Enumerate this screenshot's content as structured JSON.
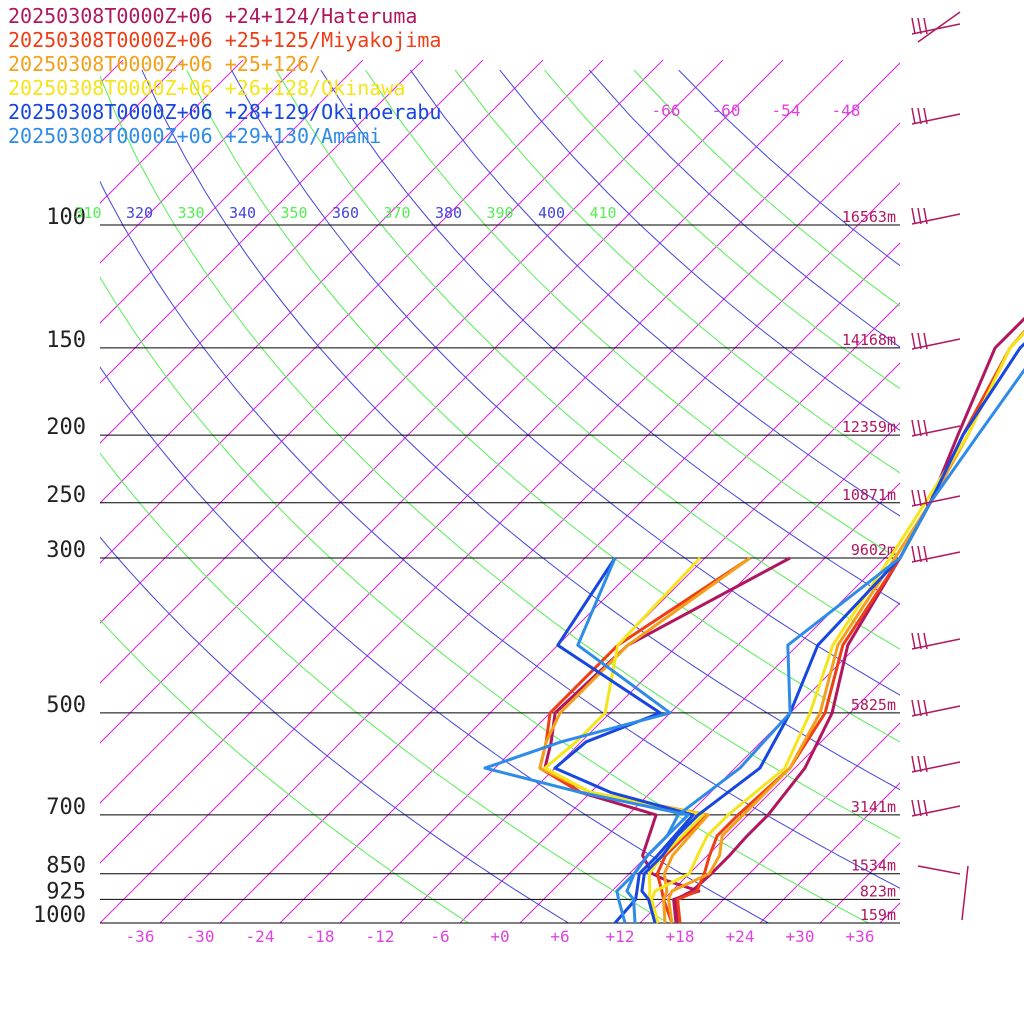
{
  "legend": [
    {
      "label": "20250308T0000Z+06 +24+124/Hateruma",
      "color": "#b0175f"
    },
    {
      "label": "20250308T0000Z+06 +25+125/Miyakojima",
      "color": "#ef3e16"
    },
    {
      "label": "20250308T0000Z+06 +25+126/",
      "color": "#f5a01a"
    },
    {
      "label": "20250308T0000Z+06 +26+128/Okinawa",
      "color": "#f5e51a"
    },
    {
      "label": "20250308T0000Z+06 +28+129/Okinoerabu",
      "color": "#1746e0"
    },
    {
      "label": "20250308T0000Z+06 +29+130/Amami",
      "color": "#2e8ce8"
    }
  ],
  "chart_data": {
    "type": "line",
    "x_ticks": [
      "-36",
      "-30",
      "-24",
      "-18",
      "-12",
      "-6",
      "+0",
      "+6",
      "+12",
      "+18",
      "+24",
      "+30",
      "+36"
    ],
    "x_tick_values": [
      -36,
      -30,
      -24,
      -18,
      -12,
      -6,
      0,
      6,
      12,
      18,
      24,
      30,
      36
    ],
    "xlim": [
      -40,
      40
    ],
    "pressure_range": [
      1000,
      100
    ],
    "pressure_levels": [
      {
        "p": 100,
        "label": "100",
        "height": "16563m"
      },
      {
        "p": 150,
        "label": "150",
        "height": "14168m"
      },
      {
        "p": 200,
        "label": "200",
        "height": "12359m"
      },
      {
        "p": 250,
        "label": "250",
        "height": "10871m"
      },
      {
        "p": 300,
        "label": "300",
        "height": "9602m"
      },
      {
        "p": 500,
        "label": "500",
        "height": "5825m"
      },
      {
        "p": 700,
        "label": "700",
        "height": "3141m"
      },
      {
        "p": 850,
        "label": "850",
        "height": "1534m"
      },
      {
        "p": 925,
        "label": "925",
        "height": "823m"
      },
      {
        "p": 1000,
        "label": "1000",
        "height": "159m"
      }
    ],
    "upper_temp_labels": [
      "-66",
      "-60",
      "-54",
      "-48"
    ],
    "upper_temp_values": [
      -66,
      -60,
      -54,
      -48
    ],
    "theta_labels": [
      {
        "label": "310",
        "color": "#55ee55"
      },
      {
        "label": "320",
        "color": "#4444dd"
      },
      {
        "label": "330",
        "color": "#55ee55"
      },
      {
        "label": "340",
        "color": "#4444dd"
      },
      {
        "label": "350",
        "color": "#55ee55"
      },
      {
        "label": "360",
        "color": "#4444dd"
      },
      {
        "label": "370",
        "color": "#55ee55"
      },
      {
        "label": "380",
        "color": "#4444dd"
      },
      {
        "label": "390",
        "color": "#55ee55"
      },
      {
        "label": "400",
        "color": "#4444dd"
      },
      {
        "label": "410",
        "color": "#55ee55"
      }
    ],
    "series": [
      {
        "name": "Hateruma",
        "color": "#b0175f",
        "temperature": [
          [
            1000,
            17.8
          ],
          [
            925,
            15.2
          ],
          [
            900,
            16
          ],
          [
            850,
            16.2
          ],
          [
            800,
            16.2
          ],
          [
            750,
            16
          ],
          [
            700,
            16
          ],
          [
            600,
            15
          ],
          [
            500,
            12.2
          ],
          [
            400,
            7
          ],
          [
            300,
            3.5
          ],
          [
            250,
            1
          ],
          [
            200,
            -3
          ],
          [
            150,
            -8
          ],
          [
            100,
            -8
          ]
        ],
        "dewpoint": [
          [
            1000,
            17.6
          ],
          [
            925,
            15
          ],
          [
            900,
            16.7
          ],
          [
            870,
            12.5
          ],
          [
            850,
            10.3
          ],
          [
            800,
            7.5
          ],
          [
            700,
            4.8
          ],
          [
            650,
            -5
          ],
          [
            600,
            -11
          ],
          [
            550,
            -13
          ],
          [
            500,
            -15.5
          ],
          [
            400,
            -15
          ],
          [
            300,
            -7.5
          ]
        ]
      },
      {
        "name": "Miyakojima",
        "color": "#ef3e16",
        "temperature": [
          [
            1000,
            18
          ],
          [
            925,
            15.4
          ],
          [
            900,
            16.5
          ],
          [
            850,
            15.5
          ],
          [
            800,
            14.2
          ],
          [
            750,
            13
          ],
          [
            700,
            13
          ],
          [
            600,
            13.5
          ],
          [
            500,
            11.5
          ],
          [
            400,
            6.5
          ],
          [
            300,
            3.5
          ],
          [
            250,
            1
          ],
          [
            200,
            -2.5
          ],
          [
            150,
            -6.5
          ],
          [
            100,
            -8
          ]
        ],
        "dewpoint": [
          [
            1000,
            17.2
          ],
          [
            925,
            14
          ],
          [
            900,
            13
          ],
          [
            850,
            10.8
          ],
          [
            800,
            9.8
          ],
          [
            700,
            9.8
          ],
          [
            650,
            -5
          ],
          [
            600,
            -11.5
          ],
          [
            550,
            -13.5
          ],
          [
            500,
            -16
          ],
          [
            400,
            -16
          ],
          [
            300,
            -11.5
          ]
        ]
      },
      {
        "name": "",
        "color": "#f5a01a",
        "temperature": [
          [
            1000,
            17.2
          ],
          [
            925,
            14.5
          ],
          [
            900,
            14
          ],
          [
            850,
            16
          ],
          [
            800,
            15.2
          ],
          [
            750,
            13.5
          ],
          [
            700,
            13.5
          ],
          [
            600,
            13.5
          ],
          [
            500,
            11
          ],
          [
            400,
            6
          ],
          [
            300,
            3
          ],
          [
            250,
            1
          ],
          [
            200,
            -2
          ],
          [
            150,
            -6.5
          ],
          [
            100,
            -7.5
          ]
        ],
        "dewpoint": [
          [
            1000,
            16.5
          ],
          [
            925,
            14
          ],
          [
            900,
            13.5
          ],
          [
            850,
            11.5
          ],
          [
            800,
            10.5
          ],
          [
            700,
            10
          ],
          [
            650,
            -4
          ],
          [
            600,
            -11.5
          ],
          [
            550,
            -13.5
          ],
          [
            500,
            -15
          ],
          [
            400,
            -15
          ],
          [
            300,
            -11.5
          ]
        ]
      },
      {
        "name": "Okinawa",
        "color": "#f5e51a",
        "temperature": [
          [
            1000,
            15.8
          ],
          [
            925,
            12.8
          ],
          [
            900,
            12.3
          ],
          [
            850,
            14
          ],
          [
            800,
            13
          ],
          [
            750,
            12
          ],
          [
            700,
            12
          ],
          [
            600,
            13
          ],
          [
            500,
            10
          ],
          [
            400,
            5.5
          ],
          [
            300,
            2.5
          ],
          [
            250,
            0.5
          ],
          [
            200,
            -2
          ],
          [
            150,
            -6.5
          ],
          [
            100,
            -7
          ]
        ],
        "dewpoint": [
          [
            1000,
            15.5
          ],
          [
            925,
            12.5
          ],
          [
            900,
            11.8
          ],
          [
            850,
            10
          ],
          [
            800,
            9.5
          ],
          [
            700,
            9.5
          ],
          [
            650,
            -4
          ],
          [
            600,
            -11
          ],
          [
            550,
            -10.5
          ],
          [
            500,
            -10.5
          ],
          [
            400,
            -16
          ],
          [
            300,
            -16.5
          ]
        ]
      },
      {
        "name": "Okinoerabu",
        "color": "#1746e0",
        "temperature": [
          [
            1000,
            15.5
          ],
          [
            925,
            12.5
          ],
          [
            900,
            11
          ],
          [
            850,
            9.5
          ],
          [
            800,
            9.5
          ],
          [
            750,
            9
          ],
          [
            700,
            9
          ],
          [
            600,
            10.5
          ],
          [
            500,
            8
          ],
          [
            400,
            4
          ],
          [
            300,
            3.5
          ],
          [
            250,
            1
          ],
          [
            200,
            -2.5
          ],
          [
            150,
            -5.5
          ],
          [
            100,
            -5
          ]
        ],
        "dewpoint": [
          [
            1000,
            11.5
          ],
          [
            925,
            11.2
          ],
          [
            900,
            10.5
          ],
          [
            850,
            9
          ],
          [
            800,
            9
          ],
          [
            700,
            8.5
          ],
          [
            650,
            -2
          ],
          [
            600,
            -10
          ],
          [
            550,
            -9.5
          ],
          [
            500,
            -5
          ],
          [
            400,
            -22
          ],
          [
            300,
            -25
          ]
        ]
      },
      {
        "name": "Amami",
        "color": "#2e8ce8",
        "temperature": [
          [
            1000,
            13.5
          ],
          [
            925,
            11
          ],
          [
            900,
            9.5
          ],
          [
            850,
            8.5
          ],
          [
            800,
            8
          ],
          [
            750,
            8
          ],
          [
            700,
            7
          ],
          [
            600,
            8.5
          ],
          [
            500,
            8
          ],
          [
            400,
            1
          ],
          [
            300,
            3.5
          ],
          [
            250,
            1
          ],
          [
            200,
            -1
          ],
          [
            150,
            -3.5
          ],
          [
            100,
            -7
          ]
        ],
        "dewpoint": [
          [
            1000,
            12.5
          ],
          [
            925,
            9.5
          ],
          [
            900,
            8.5
          ],
          [
            850,
            8.5
          ],
          [
            800,
            8
          ],
          [
            700,
            8
          ],
          [
            650,
            -5
          ],
          [
            600,
            -17
          ],
          [
            550,
            -12
          ],
          [
            500,
            -4
          ],
          [
            400,
            -20
          ],
          [
            300,
            -25
          ]
        ]
      }
    ]
  }
}
